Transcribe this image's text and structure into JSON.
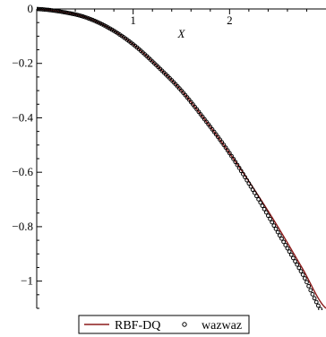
{
  "chart_data": {
    "type": "line",
    "title": "",
    "xlabel": "X",
    "ylabel": "",
    "xlim": [
      0,
      3.0
    ],
    "ylim": [
      -1.1,
      0
    ],
    "x_ticks": [
      {
        "value": 1,
        "label": "1"
      },
      {
        "value": 2,
        "label": "2"
      }
    ],
    "y_ticks": [
      {
        "value": 0,
        "label": "0"
      },
      {
        "value": -0.2,
        "label": "−0.2"
      },
      {
        "value": -0.4,
        "label": "−0.4"
      },
      {
        "value": -0.6,
        "label": "−0.6"
      },
      {
        "value": -0.8,
        "label": "−0.8"
      },
      {
        "value": -1,
        "label": "−1"
      }
    ],
    "grid": false,
    "legend_position": "bottom",
    "series": [
      {
        "name": "RBF-DQ",
        "style": "line",
        "color": "#8b1a1a",
        "x": [
          0,
          0.25,
          0.5,
          0.75,
          1.0,
          1.25,
          1.5,
          1.75,
          2.0,
          2.25,
          2.5,
          2.75,
          3.0
        ],
        "y": [
          0,
          -0.01,
          -0.03,
          -0.07,
          -0.13,
          -0.21,
          -0.3,
          -0.41,
          -0.53,
          -0.66,
          -0.8,
          -0.95,
          -1.1
        ]
      },
      {
        "name": "wazwaz",
        "style": "circles",
        "color": "#000000",
        "x": [
          0,
          0.25,
          0.5,
          0.75,
          1.0,
          1.25,
          1.5,
          1.75,
          2.0,
          2.25,
          2.5,
          2.75,
          3.0
        ],
        "y": [
          0,
          -0.01,
          -0.03,
          -0.07,
          -0.13,
          -0.21,
          -0.3,
          -0.41,
          -0.53,
          -0.67,
          -0.82,
          -0.97,
          -1.13
        ]
      }
    ]
  }
}
